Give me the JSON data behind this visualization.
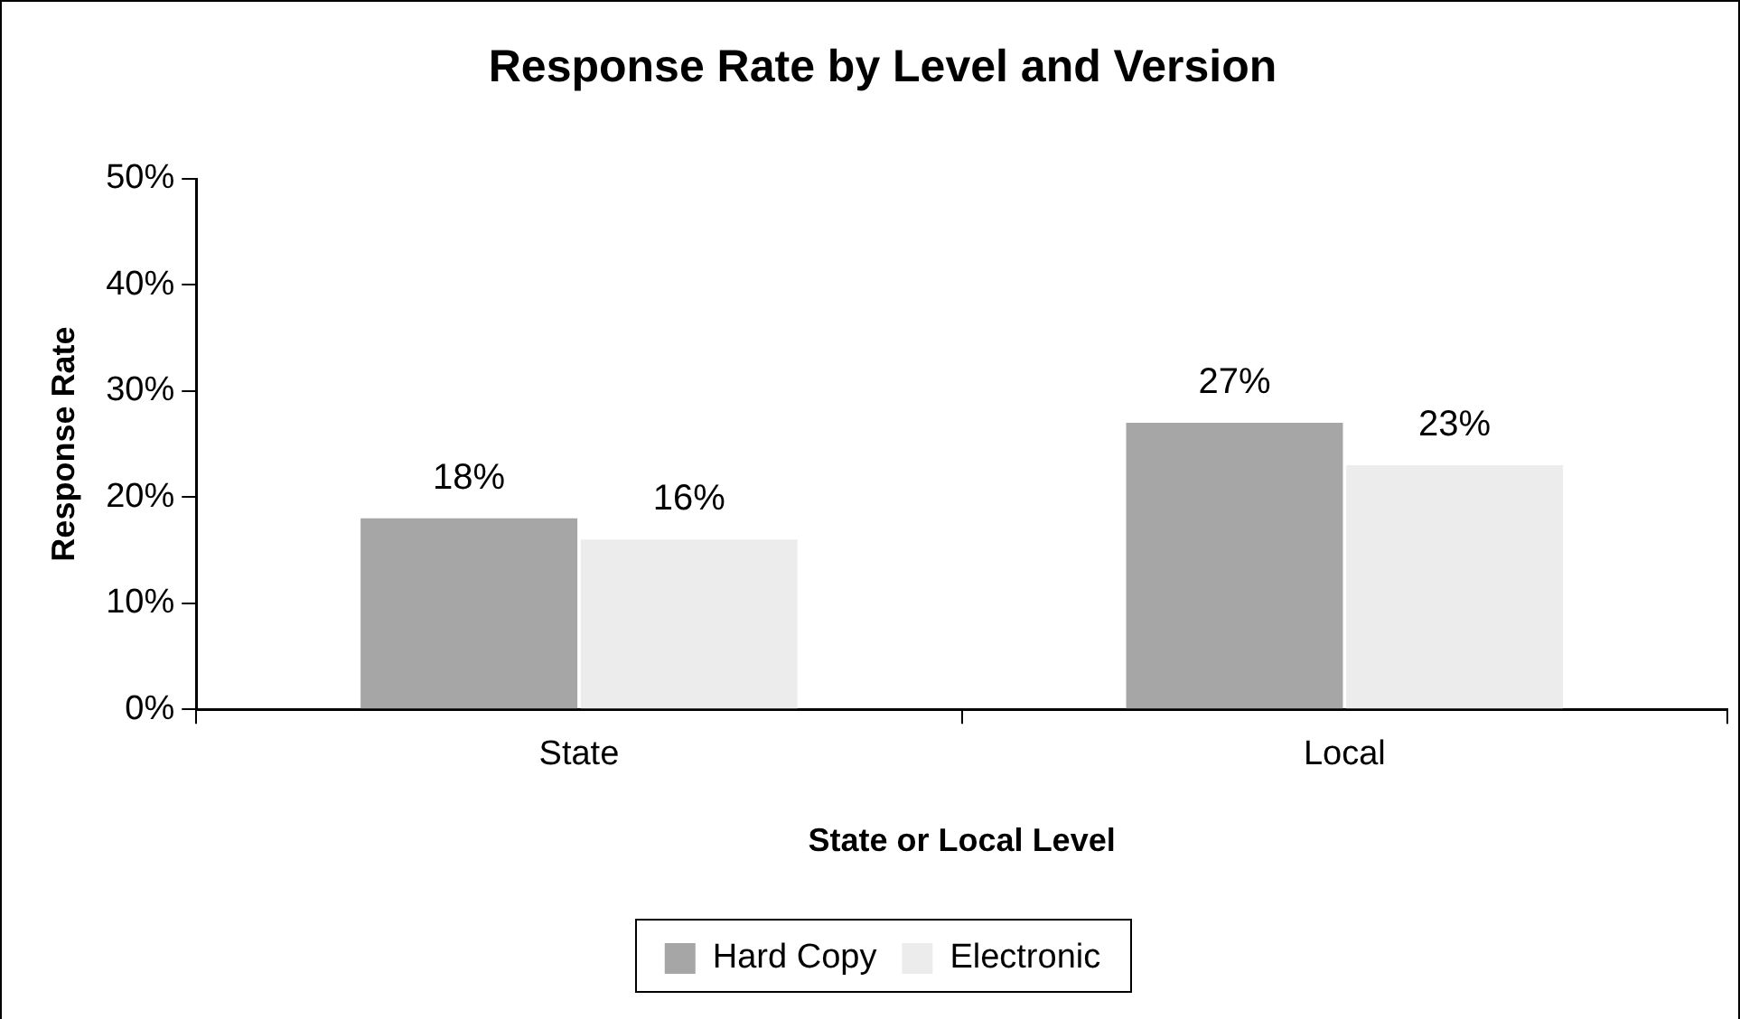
{
  "chart_data": {
    "type": "bar",
    "title": "Response Rate by Level and Version",
    "xlabel": "State or Local Level",
    "ylabel": "Response Rate",
    "categories": [
      "State",
      "Local"
    ],
    "series": [
      {
        "name": "Hard Copy",
        "color": "#a6a6a6",
        "values": [
          18,
          27
        ],
        "value_labels": [
          "18%",
          "27%"
        ]
      },
      {
        "name": "Electronic",
        "color": "#ececec",
        "values": [
          16,
          23
        ],
        "value_labels": [
          "16%",
          "23%"
        ]
      }
    ],
    "ylim": [
      0,
      50
    ],
    "yticks": [
      {
        "value": 0,
        "label": "0%"
      },
      {
        "value": 10,
        "label": "10%"
      },
      {
        "value": 20,
        "label": "20%"
      },
      {
        "value": 30,
        "label": "30%"
      },
      {
        "value": 40,
        "label": "40%"
      },
      {
        "value": 50,
        "label": "50%"
      }
    ],
    "grid": false,
    "legend": "bottom"
  }
}
